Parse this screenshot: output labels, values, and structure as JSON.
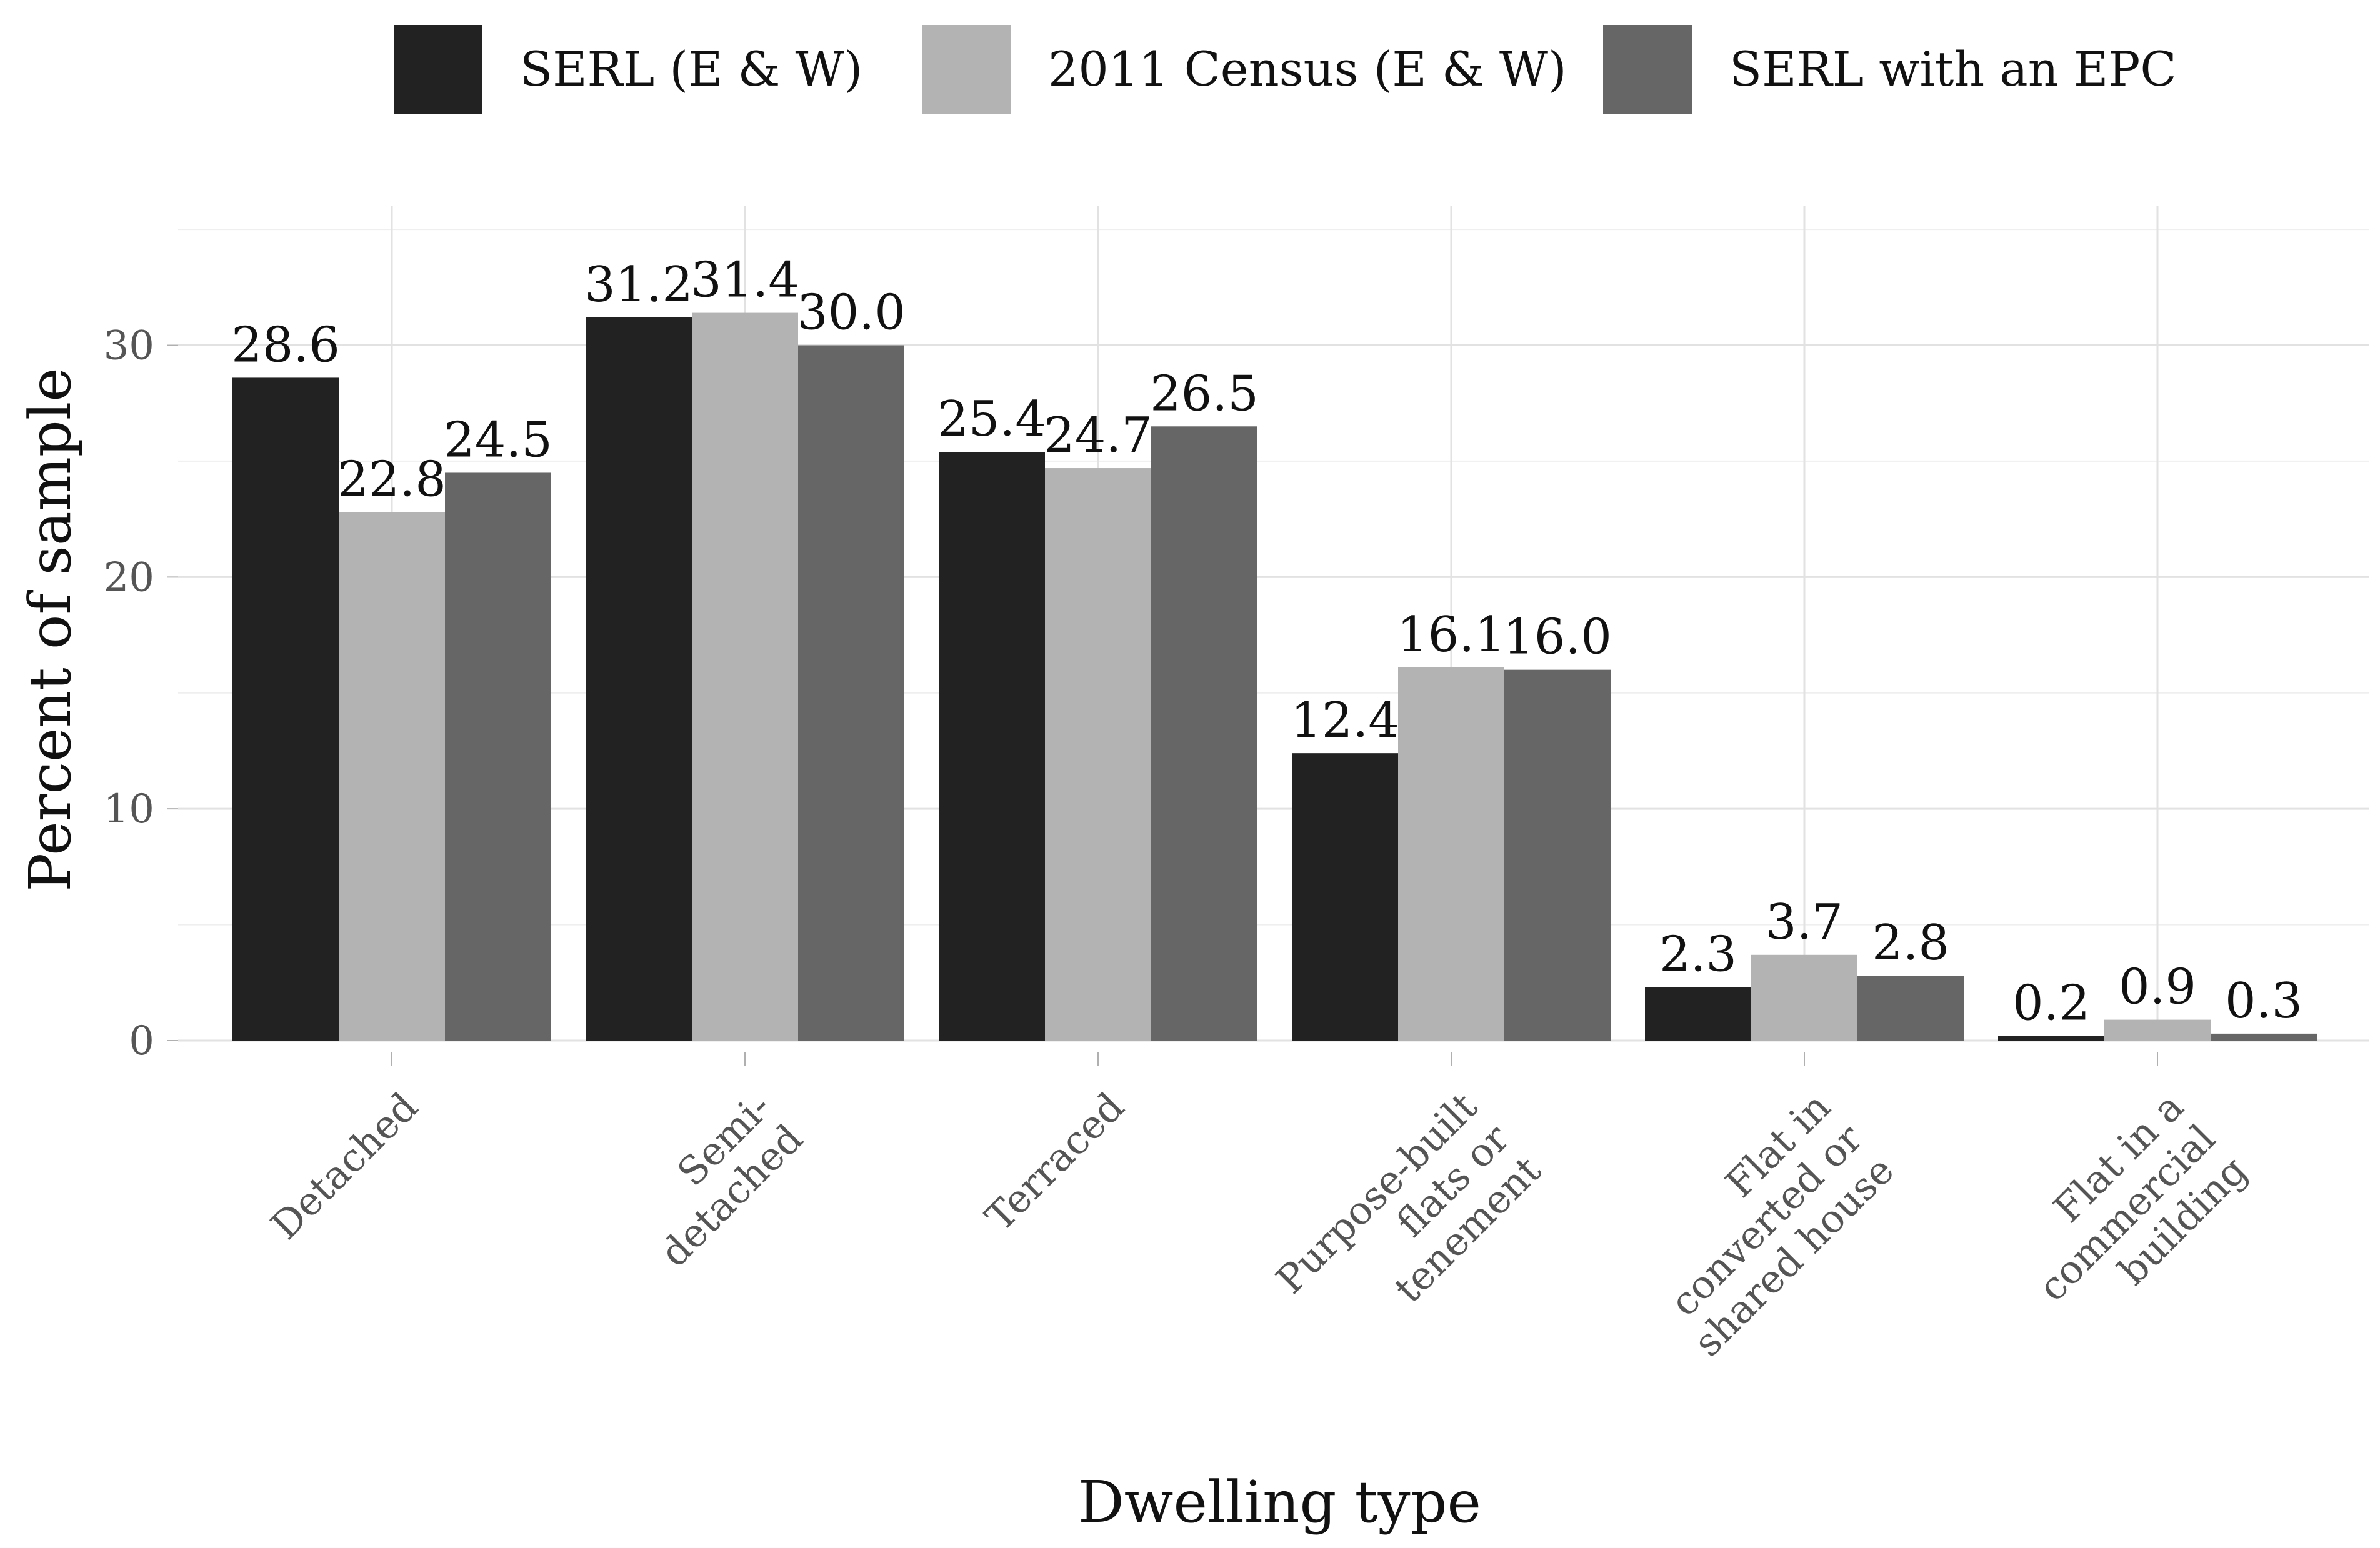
{
  "chart_data": {
    "type": "bar",
    "title": "",
    "xlabel": "Dwelling type",
    "ylabel": "Percent of sample",
    "ylim": [
      0,
      36
    ],
    "yticks": [
      0,
      10,
      20,
      30
    ],
    "grid": true,
    "legend_position": "top",
    "categories": [
      [
        "Detached"
      ],
      [
        "Semi-",
        "detached"
      ],
      [
        "Terraced"
      ],
      [
        "Purpose-built",
        "flats or",
        "tenement"
      ],
      [
        "Flat in",
        "converted or",
        "shared house"
      ],
      [
        "Flat in a",
        "commercial",
        "building"
      ]
    ],
    "series": [
      {
        "name": "SERL (E & W)",
        "color": "#222222",
        "values": [
          28.6,
          31.2,
          25.4,
          12.4,
          2.3,
          0.2
        ],
        "labels": [
          "28.6",
          "31.2",
          "25.4",
          "12.4",
          "2.3",
          "0.2"
        ]
      },
      {
        "name": "2011 Census (E & W)",
        "color": "#b3b3b3",
        "values": [
          22.8,
          31.4,
          24.7,
          16.1,
          3.7,
          0.9
        ],
        "labels": [
          "22.8",
          "31.4",
          "24.7",
          "16.1",
          "3.7",
          "0.9"
        ]
      },
      {
        "name": "SERL with an EPC",
        "color": "#666666",
        "values": [
          24.5,
          30.0,
          26.5,
          16.0,
          2.8,
          0.3
        ],
        "labels": [
          "24.5",
          "30.0",
          "26.5",
          "16.0",
          "2.8",
          "0.3"
        ]
      }
    ]
  }
}
